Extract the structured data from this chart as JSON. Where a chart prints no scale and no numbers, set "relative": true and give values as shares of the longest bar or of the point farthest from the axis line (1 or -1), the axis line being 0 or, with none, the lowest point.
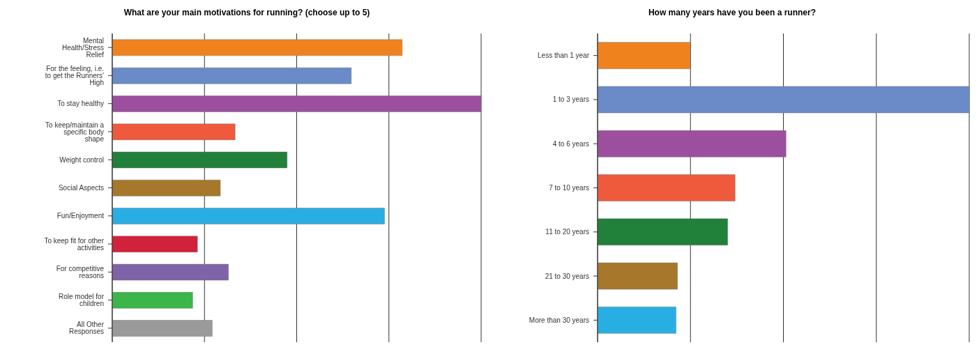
{
  "chart_data": [
    {
      "type": "bar",
      "orientation": "horizontal",
      "relative": true,
      "grid": "x",
      "title": "What are your main motivations for running? (choose up to 5)",
      "categories": [
        "Mental Health/Stress Relief",
        "For the feeling, i.e. to get the Runners' High",
        "To stay healthy",
        "To keep/maintain a specific body shape",
        "Weight control",
        "Social Aspects",
        "Fun/Enjoyment",
        "To keep fit for other activities",
        "For competitive reasons",
        "Role model for children",
        "All Other Responses"
      ],
      "values": [
        0.786,
        0.648,
        1,
        0.333,
        0.474,
        0.293,
        0.738,
        0.231,
        0.315,
        0.218,
        0.271
      ],
      "colors": [
        "#f0821e",
        "#6a8bc8",
        "#9b4f9e",
        "#ef5a3c",
        "#21803a",
        "#a7782b",
        "#29aee3",
        "#d2213a",
        "#7e63a9",
        "#3cb54a",
        "#9a9a9a"
      ]
    },
    {
      "type": "bar",
      "orientation": "horizontal",
      "relative": true,
      "grid": "x",
      "title": "How many years have you been a runner?",
      "categories": [
        "Less than 1 year",
        "1 to 3 years",
        "4 to 6 years",
        "7 to 10 years",
        "11 to 20 years",
        "21 to 30 years",
        "More than 30 years"
      ],
      "values": [
        0.249,
        1,
        0.507,
        0.37,
        0.35,
        0.215,
        0.211
      ],
      "colors": [
        "#f0821e",
        "#6a8bc8",
        "#9b4f9e",
        "#ef5a3c",
        "#21803a",
        "#a7782b",
        "#29aee3"
      ]
    }
  ]
}
